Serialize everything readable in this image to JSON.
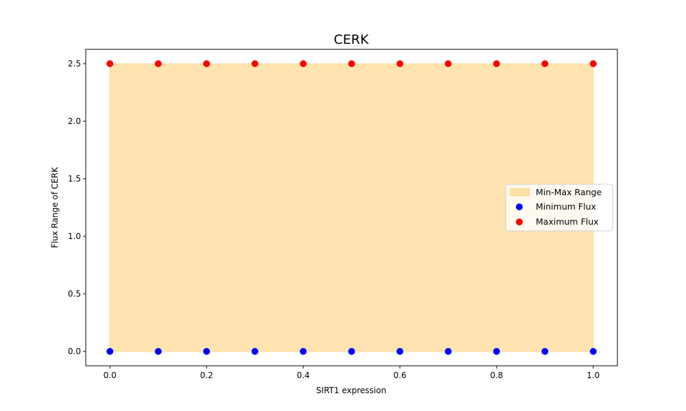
{
  "chart_data": {
    "type": "scatter",
    "title": "CERK",
    "xlabel": "SIRT1 expression",
    "ylabel": "Flux Range of CERK",
    "xlim": [
      -0.05,
      1.05
    ],
    "ylim": [
      -0.125,
      2.625
    ],
    "xticks": [
      "0.0",
      "0.2",
      "0.4",
      "0.6",
      "0.8",
      "1.0"
    ],
    "yticks": [
      "0.0",
      "0.5",
      "1.0",
      "1.5",
      "2.0",
      "2.5"
    ],
    "x": [
      0.0,
      0.1,
      0.2,
      0.3,
      0.4,
      0.5,
      0.6,
      0.7,
      0.8,
      0.9,
      1.0
    ],
    "fill": {
      "name": "Min-Max Range",
      "color": "#ffa500",
      "alpha": 0.3
    },
    "series": [
      {
        "name": "Minimum Flux",
        "color": "#0000ff",
        "values": [
          0,
          0,
          0,
          0,
          0,
          0,
          0,
          0,
          0,
          0,
          0
        ]
      },
      {
        "name": "Maximum Flux",
        "color": "#ff0000",
        "values": [
          2.5,
          2.5,
          2.5,
          2.5,
          2.5,
          2.5,
          2.5,
          2.5,
          2.5,
          2.5,
          2.5
        ]
      }
    ],
    "grid": false,
    "legend_position": "center-right"
  }
}
